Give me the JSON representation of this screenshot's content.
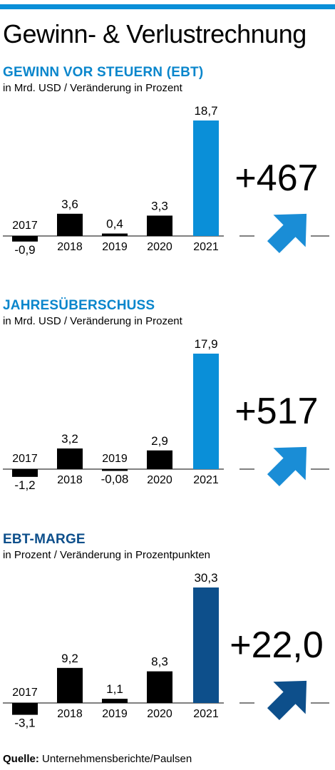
{
  "title": "Gewinn- & Verlustrechnung",
  "source_label": "Quelle:",
  "source_text": "Unternehmensberichte/Paulsen",
  "colors": {
    "topbar": "#0a8fd8",
    "title_blue": "#0a86cc",
    "title_navy": "#0d4f8b",
    "bar_black": "#000000",
    "bar_blue": "#0a8fd8",
    "bar_navy": "#0d4f8b",
    "arrow_blue": "#1a8dd6",
    "arrow_navy": "#0d4f8b",
    "axis": "#000000"
  },
  "chart_data": [
    {
      "type": "bar",
      "title": "GEWINN VOR STEUERN (EBT)",
      "subtitle": "in Mrd. USD / Veränderung in Prozent",
      "categories": [
        "2017",
        "2018",
        "2019",
        "2020",
        "2021"
      ],
      "values": [
        -0.9,
        3.6,
        0.4,
        3.3,
        18.7
      ],
      "value_labels": [
        "-0,9",
        "3,6",
        "0,4",
        "3,3",
        "18,7"
      ],
      "change": "+467",
      "highlight_color": "#0a8fd8",
      "title_color": "#0a86cc",
      "arrow_color": "#1a8dd6"
    },
    {
      "type": "bar",
      "title": "JAHRESÜBERSCHUSS",
      "subtitle": "in Mrd. USD / Veränderung in Prozent",
      "categories": [
        "2017",
        "2018",
        "2019",
        "2020",
        "2021"
      ],
      "values": [
        -1.2,
        3.2,
        -0.08,
        2.9,
        17.9
      ],
      "value_labels": [
        "-1,2",
        "3,2",
        "-0,08",
        "2,9",
        "17,9"
      ],
      "change": "+517",
      "highlight_color": "#0a8fd8",
      "title_color": "#0a86cc",
      "arrow_color": "#1a8dd6"
    },
    {
      "type": "bar",
      "title": "EBT-MARGE",
      "subtitle": "in Prozent / Veränderung in Prozentpunkten",
      "categories": [
        "2017",
        "2018",
        "2019",
        "2020",
        "2021"
      ],
      "values": [
        -3.1,
        9.2,
        1.1,
        8.3,
        30.3
      ],
      "value_labels": [
        "-3,1",
        "9,2",
        "1,1",
        "8,3",
        "30,3"
      ],
      "change": "+22,0",
      "highlight_color": "#0d4f8b",
      "title_color": "#0d4f8b",
      "arrow_color": "#0d4f8b"
    }
  ]
}
